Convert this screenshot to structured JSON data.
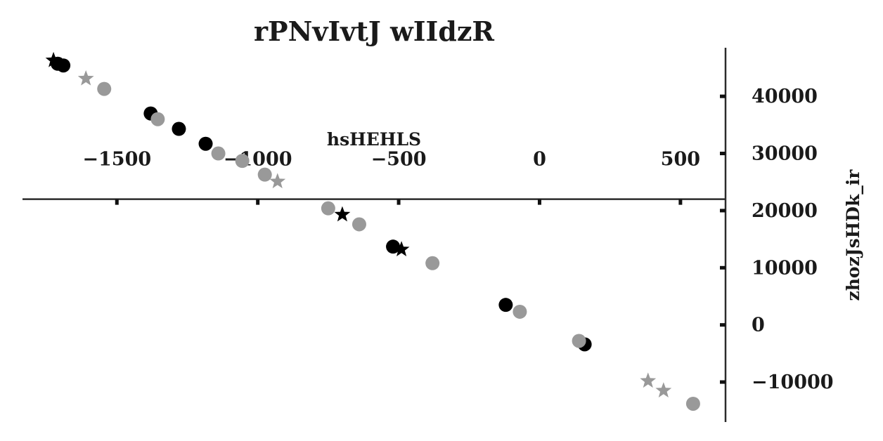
{
  "chart_data": {
    "type": "scatter",
    "title": "rPNvIvtJ wIIdzR",
    "xlabel": "hsHEHLS",
    "ylabel": "zhozJsHDk_ir",
    "xlim": [
      -1835,
      660
    ],
    "ylim": [
      -17000,
      48500
    ],
    "x_ticks": [
      -1500,
      -1000,
      -500,
      0,
      500
    ],
    "x_tick_labels": [
      "−1500",
      "−1000",
      "−500",
      "0",
      "500"
    ],
    "y_ticks": [
      -10000,
      0,
      10000,
      20000,
      30000,
      40000
    ],
    "y_tick_labels": [
      "−10000",
      "0",
      "10000",
      "20000",
      "30000",
      "40000"
    ],
    "x_axis_crosses_y": 22000,
    "y_axis_crosses_x": 660,
    "grid": false,
    "legend": "none",
    "colors": {
      "black": "#000000",
      "gray": "#999999",
      "axis": "#2b2b2b",
      "text": "#1a1a1a"
    },
    "series": [
      {
        "marker": "circle",
        "color": "#000000",
        "points": [
          {
            "x": -1710,
            "y": 45700
          },
          {
            "x": -1690,
            "y": 45400
          },
          {
            "x": -1380,
            "y": 37000
          },
          {
            "x": -1280,
            "y": 34300
          },
          {
            "x": -1185,
            "y": 31700
          },
          {
            "x": -520,
            "y": 13700
          },
          {
            "x": -120,
            "y": 3500
          },
          {
            "x": 160,
            "y": -3400
          }
        ]
      },
      {
        "marker": "circle",
        "color": "#999999",
        "points": [
          {
            "x": -1545,
            "y": 41300
          },
          {
            "x": -1355,
            "y": 36000
          },
          {
            "x": -1140,
            "y": 30000
          },
          {
            "x": -1055,
            "y": 28700
          },
          {
            "x": -975,
            "y": 26300
          },
          {
            "x": -750,
            "y": 20400
          },
          {
            "x": -640,
            "y": 17600
          },
          {
            "x": -380,
            "y": 10800
          },
          {
            "x": -70,
            "y": 2300
          },
          {
            "x": 140,
            "y": -2800
          },
          {
            "x": 545,
            "y": -13800
          }
        ]
      },
      {
        "marker": "star",
        "color": "#000000",
        "points": [
          {
            "x": -1725,
            "y": 46300
          },
          {
            "x": -700,
            "y": 19300
          },
          {
            "x": -490,
            "y": 13200
          }
        ]
      },
      {
        "marker": "star",
        "color": "#999999",
        "points": [
          {
            "x": -1610,
            "y": 43100
          },
          {
            "x": -930,
            "y": 25100
          },
          {
            "x": 385,
            "y": -9800
          },
          {
            "x": 440,
            "y": -11500
          }
        ]
      }
    ]
  }
}
